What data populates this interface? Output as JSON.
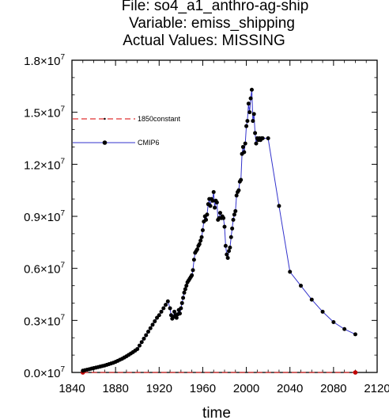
{
  "chart_data": {
    "type": "line",
    "title": [
      "File: so4_a1_anthro-ag-ship",
      "Variable: emiss_shipping",
      "Actual Values: MISSING"
    ],
    "xlabel": "time",
    "ylabel": "",
    "xlim": [
      1840,
      2120
    ],
    "ylim": [
      0,
      18000000
    ],
    "x_ticks": [
      1840,
      1880,
      1920,
      1960,
      2000,
      2040,
      2080,
      2120
    ],
    "y_ticks": [
      {
        "value": 0,
        "mant": "0.0",
        "exp": "7"
      },
      {
        "value": 3000000,
        "mant": "0.3",
        "exp": "7"
      },
      {
        "value": 6000000,
        "mant": "0.6",
        "exp": "7"
      },
      {
        "value": 9000000,
        "mant": "0.9",
        "exp": "7"
      },
      {
        "value": 12000000,
        "mant": "1.2",
        "exp": "7"
      },
      {
        "value": 15000000,
        "mant": "1.5",
        "exp": "7"
      },
      {
        "value": 18000000,
        "mant": "1.8",
        "exp": "7"
      }
    ],
    "y_tick_prefix_sep": "×10",
    "legend_placement": "left, upper-middle",
    "series": [
      {
        "name": "1850constant",
        "color": "#e03030",
        "style": "dashed",
        "x": [
          1850,
          2100
        ],
        "y": [
          0,
          0
        ]
      },
      {
        "name": "CMIP6",
        "color": "#3333cc",
        "style": "solid",
        "marker": "dot",
        "x": [
          1850,
          1852,
          1854,
          1856,
          1858,
          1860,
          1862,
          1864,
          1866,
          1868,
          1870,
          1872,
          1874,
          1876,
          1878,
          1880,
          1882,
          1884,
          1886,
          1888,
          1890,
          1892,
          1894,
          1896,
          1898,
          1900,
          1902,
          1904,
          1906,
          1908,
          1910,
          1912,
          1914,
          1916,
          1918,
          1920,
          1922,
          1924,
          1926,
          1928,
          1930,
          1931,
          1932,
          1933,
          1934,
          1935,
          1936,
          1937,
          1938,
          1939,
          1940,
          1941,
          1942,
          1943,
          1944,
          1945,
          1946,
          1947,
          1948,
          1949,
          1950,
          1951,
          1952,
          1953,
          1954,
          1955,
          1956,
          1957,
          1958,
          1959,
          1960,
          1961,
          1962,
          1963,
          1964,
          1965,
          1966,
          1967,
          1968,
          1969,
          1970,
          1971,
          1972,
          1973,
          1974,
          1975,
          1976,
          1977,
          1978,
          1979,
          1980,
          1981,
          1982,
          1983,
          1984,
          1985,
          1986,
          1987,
          1988,
          1989,
          1990,
          1991,
          1992,
          1993,
          1994,
          1995,
          1996,
          1997,
          1998,
          1999,
          2000,
          2001,
          2002,
          2003,
          2004,
          2005,
          2006,
          2007,
          2008,
          2009,
          2010,
          2011,
          2012,
          2013,
          2014,
          2015,
          2020,
          2030,
          2040,
          2050,
          2060,
          2070,
          2080,
          2090,
          2100
        ],
        "y": [
          100000,
          130000,
          160000,
          190000,
          220000,
          250000,
          280000,
          310000,
          340000,
          370000,
          400000,
          440000,
          480000,
          520000,
          560000,
          610000,
          670000,
          730000,
          790000,
          860000,
          930000,
          1010000,
          1090000,
          1170000,
          1260000,
          1350000,
          1550000,
          1750000,
          1950000,
          2150000,
          2350000,
          2550000,
          2750000,
          2950000,
          3150000,
          3300000,
          3500000,
          3700000,
          3900000,
          4100000,
          3700000,
          3300000,
          3100000,
          3200000,
          3500000,
          3300000,
          3150000,
          3350000,
          3600000,
          3400000,
          3700000,
          4000000,
          4300000,
          4600000,
          4800000,
          5000000,
          5200000,
          5300000,
          5400000,
          5500000,
          5600000,
          5900000,
          6500000,
          6900000,
          7000000,
          7100000,
          7300000,
          7400000,
          7600000,
          7800000,
          8200000,
          8700000,
          9000000,
          8800000,
          9100000,
          9700000,
          10000000,
          9600000,
          10000000,
          9900000,
          10400000,
          9500000,
          9900000,
          9800000,
          8800000,
          8900000,
          9200000,
          8900000,
          9000000,
          8900000,
          8400000,
          7300000,
          6800000,
          6600000,
          7000000,
          7200000,
          7800000,
          8300000,
          8800000,
          9100000,
          9300000,
          10200000,
          10400000,
          10500000,
          11000000,
          11100000,
          12600000,
          13000000,
          12700000,
          13200000,
          14200000,
          14500000,
          15500000,
          15000000,
          15800000,
          16300000,
          14500000,
          14900000,
          13800000,
          13200000,
          13500000,
          13400000,
          13500000,
          13400000,
          13500000,
          13500000,
          13500000,
          9600000,
          5800000,
          5000000,
          4200000,
          3500000,
          2900000,
          2500000,
          2200000
        ]
      }
    ]
  }
}
